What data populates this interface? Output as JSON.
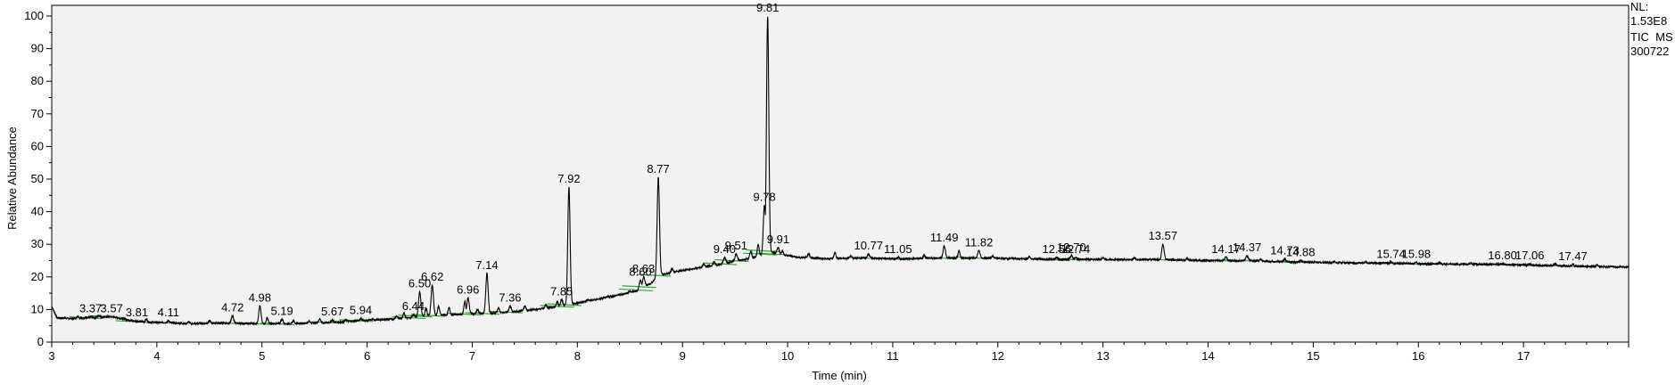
{
  "chart_data": {
    "type": "line",
    "xlabel": "Time (min)",
    "ylabel": "Relative Abundance",
    "xlim": [
      3.0,
      18.0
    ],
    "ylim": [
      0,
      100
    ],
    "x_ticks": [
      "3",
      "4",
      "5",
      "6",
      "7",
      "8",
      "9",
      "10",
      "11",
      "12",
      "13",
      "14",
      "15",
      "16",
      "17"
    ],
    "y_ticks": [
      "0",
      "10",
      "20",
      "30",
      "40",
      "50",
      "60",
      "70",
      "80",
      "90",
      "100"
    ],
    "info_lines": [
      "NL:",
      "1.53E8",
      "TIC  MS",
      "300722"
    ],
    "grid": false,
    "colors": {
      "trace": "#000000",
      "baseline_marks": "#33aa33",
      "frame": "#000000"
    },
    "baseline_points": [
      [
        3.0,
        11
      ],
      [
        3.05,
        7.5
      ],
      [
        3.2,
        7.2
      ],
      [
        3.37,
        7.5
      ],
      [
        3.57,
        7.8
      ],
      [
        3.7,
        7.0
      ],
      [
        3.81,
        6.3
      ],
      [
        4.0,
        6.0
      ],
      [
        4.11,
        6.0
      ],
      [
        4.3,
        5.6
      ],
      [
        4.5,
        5.8
      ],
      [
        4.72,
        5.8
      ],
      [
        4.9,
        5.7
      ],
      [
        5.19,
        5.6
      ],
      [
        5.4,
        5.8
      ],
      [
        5.67,
        6.0
      ],
      [
        5.94,
        6.6
      ],
      [
        6.2,
        7.0
      ],
      [
        6.44,
        7.5
      ],
      [
        6.5,
        8.0
      ],
      [
        6.62,
        8.2
      ],
      [
        6.8,
        8.4
      ],
      [
        6.96,
        8.6
      ],
      [
        7.14,
        8.8
      ],
      [
        7.36,
        9.2
      ],
      [
        7.6,
        10.0
      ],
      [
        7.85,
        11.0
      ],
      [
        8.0,
        12.0
      ],
      [
        8.2,
        13.2
      ],
      [
        8.4,
        14.5
      ],
      [
        8.6,
        16.0
      ],
      [
        8.63,
        17.0
      ],
      [
        8.7,
        18.0
      ],
      [
        8.77,
        20.5
      ],
      [
        8.85,
        21.0
      ],
      [
        9.0,
        22.0
      ],
      [
        9.2,
        23.0
      ],
      [
        9.4,
        24.0
      ],
      [
        9.51,
        25.0
      ],
      [
        9.6,
        25.4
      ],
      [
        9.7,
        26.0
      ],
      [
        9.78,
        27.0
      ],
      [
        9.81,
        28.0
      ],
      [
        9.91,
        27.0
      ],
      [
        10.1,
        26.0
      ],
      [
        10.4,
        25.6
      ],
      [
        10.77,
        25.8
      ],
      [
        11.05,
        25.5
      ],
      [
        11.3,
        25.7
      ],
      [
        11.49,
        25.8
      ],
      [
        11.82,
        25.8
      ],
      [
        12.2,
        25.6
      ],
      [
        12.56,
        25.3
      ],
      [
        12.7,
        25.4
      ],
      [
        12.74,
        25.4
      ],
      [
        13.2,
        25.3
      ],
      [
        13.57,
        25.3
      ],
      [
        14.0,
        25.0
      ],
      [
        14.17,
        25.0
      ],
      [
        14.37,
        25.0
      ],
      [
        14.73,
        24.6
      ],
      [
        14.88,
        24.6
      ],
      [
        15.3,
        24.3
      ],
      [
        15.74,
        24.2
      ],
      [
        15.98,
        24.0
      ],
      [
        16.4,
        23.9
      ],
      [
        16.8,
        23.8
      ],
      [
        17.06,
        23.6
      ],
      [
        17.47,
        23.3
      ],
      [
        18.0,
        23.0
      ]
    ],
    "peaks": [
      {
        "rt": 3.37,
        "label": "3.37",
        "h": 7.8
      },
      {
        "rt": 3.57,
        "label": "3.57",
        "h": 7.8
      },
      {
        "rt": 3.81,
        "label": "3.81",
        "h": 6.5
      },
      {
        "rt": 4.11,
        "label": "4.11",
        "h": 6.5
      },
      {
        "rt": 4.72,
        "label": "4.72",
        "h": 8.0
      },
      {
        "rt": 4.98,
        "label": "4.98",
        "h": 11.0
      },
      {
        "rt": 5.19,
        "label": "5.19",
        "h": 7.0
      },
      {
        "rt": 5.67,
        "label": "5.67",
        "h": 6.8
      },
      {
        "rt": 5.94,
        "label": "5.94",
        "h": 7.2
      },
      {
        "rt": 6.44,
        "label": "6.44",
        "h": 8.5
      },
      {
        "rt": 6.5,
        "label": "6.50",
        "h": 15.5
      },
      {
        "rt": 6.62,
        "label": "6.62",
        "h": 17.5
      },
      {
        "rt": 6.96,
        "label": "6.96",
        "h": 13.5
      },
      {
        "rt": 7.14,
        "label": "7.14",
        "h": 21.0
      },
      {
        "rt": 7.36,
        "label": "7.36",
        "h": 11.0
      },
      {
        "rt": 7.85,
        "label": "7.85",
        "h": 13.0
      },
      {
        "rt": 7.92,
        "label": "7.92",
        "h": 47.5
      },
      {
        "rt": 8.6,
        "label": "8.60",
        "h": 19.0
      },
      {
        "rt": 8.63,
        "label": "8.63",
        "h": 20.0
      },
      {
        "rt": 8.77,
        "label": "8.77",
        "h": 50.5
      },
      {
        "rt": 9.4,
        "label": "9.40",
        "h": 26.0
      },
      {
        "rt": 9.51,
        "label": "9.51",
        "h": 27.0
      },
      {
        "rt": 9.78,
        "label": "9.78",
        "h": 42.0
      },
      {
        "rt": 9.81,
        "label": "9.81",
        "h": 100.0
      },
      {
        "rt": 9.91,
        "label": "9.91",
        "h": 29.0
      },
      {
        "rt": 10.77,
        "label": "10.77",
        "h": 27.0
      },
      {
        "rt": 11.05,
        "label": "11.05",
        "h": 26.0
      },
      {
        "rt": 11.49,
        "label": "11.49",
        "h": 29.5
      },
      {
        "rt": 11.82,
        "label": "11.82",
        "h": 28.0
      },
      {
        "rt": 12.56,
        "label": "12.56",
        "h": 26.0
      },
      {
        "rt": 12.7,
        "label": "12.70",
        "h": 26.5
      },
      {
        "rt": 12.74,
        "label": "12.74",
        "h": 26.0
      },
      {
        "rt": 13.57,
        "label": "13.57",
        "h": 30.0
      },
      {
        "rt": 14.17,
        "label": "14.17",
        "h": 26.0
      },
      {
        "rt": 14.37,
        "label": "14.37",
        "h": 26.5
      },
      {
        "rt": 14.73,
        "label": "14.73",
        "h": 25.5
      },
      {
        "rt": 14.88,
        "label": "14.88",
        "h": 25.0
      },
      {
        "rt": 15.74,
        "label": "15.74",
        "h": 24.5
      },
      {
        "rt": 15.98,
        "label": "15.98",
        "h": 24.5
      },
      {
        "rt": 16.8,
        "label": "16.80",
        "h": 24.0
      },
      {
        "rt": 17.06,
        "label": "17.06",
        "h": 24.0
      },
      {
        "rt": 17.47,
        "label": "17.47",
        "h": 23.8
      }
    ],
    "minor_peaks": [
      [
        3.25,
        8.0
      ],
      [
        3.45,
        8.2
      ],
      [
        3.9,
        7.0
      ],
      [
        4.3,
        6.2
      ],
      [
        4.5,
        6.5
      ],
      [
        5.05,
        7.5
      ],
      [
        5.3,
        6.5
      ],
      [
        5.45,
        6.5
      ],
      [
        5.55,
        7.2
      ],
      [
        5.8,
        6.8
      ],
      [
        6.05,
        7.0
      ],
      [
        6.28,
        8.0
      ],
      [
        6.35,
        9.0
      ],
      [
        6.56,
        10.5
      ],
      [
        6.68,
        11.0
      ],
      [
        6.78,
        10.5
      ],
      [
        6.93,
        12.5
      ],
      [
        7.05,
        10.0
      ],
      [
        7.25,
        10.5
      ],
      [
        7.5,
        11.0
      ],
      [
        7.7,
        11.5
      ],
      [
        7.81,
        12.5
      ],
      [
        8.1,
        13.0
      ],
      [
        8.3,
        14.0
      ],
      [
        8.5,
        15.5
      ],
      [
        8.9,
        22.5
      ],
      [
        9.2,
        24.0
      ],
      [
        9.3,
        24.5
      ],
      [
        9.65,
        28.0
      ],
      [
        9.72,
        30.0
      ],
      [
        9.95,
        28.0
      ],
      [
        10.2,
        27.0
      ],
      [
        10.45,
        27.5
      ],
      [
        10.6,
        26.5
      ],
      [
        11.3,
        26.8
      ],
      [
        11.63,
        28.0
      ],
      [
        11.95,
        26.5
      ],
      [
        12.3,
        26.2
      ],
      [
        13.0,
        26.0
      ],
      [
        13.3,
        25.8
      ],
      [
        13.8,
        25.6
      ],
      [
        14.5,
        25.3
      ],
      [
        15.2,
        24.8
      ],
      [
        15.5,
        24.6
      ],
      [
        16.2,
        24.5
      ],
      [
        16.5,
        24.3
      ],
      [
        17.3,
        24.0
      ],
      [
        17.7,
        23.7
      ]
    ]
  }
}
